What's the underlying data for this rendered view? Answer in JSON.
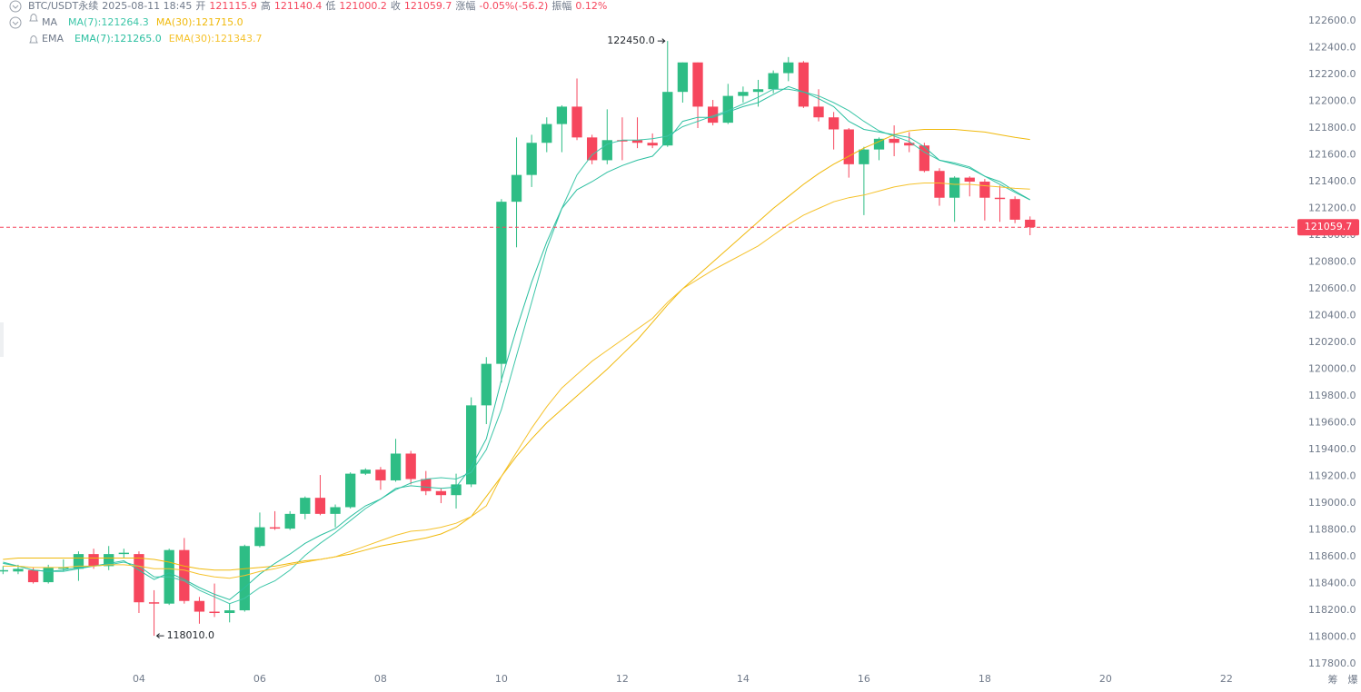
{
  "chart_data": {
    "type": "candlestick",
    "header": {
      "symbol": "BTC/USDT永续",
      "time": "2025-08-11 18:45",
      "labels": [
        "开",
        "高",
        "低",
        "收",
        "涨幅",
        "振幅"
      ],
      "change": "-0.05%(-56.2)",
      "amplitude": "0.12%"
    },
    "indicator_groups": [
      "MA",
      "EMA"
    ],
    "up_color": "#2ebd85",
    "down_color": "#f6465d",
    "x": [
      1.75,
      2,
      2.25,
      2.5,
      2.75,
      3,
      3.25,
      3.5,
      3.75,
      4,
      4.25,
      4.5,
      4.75,
      5,
      5.25,
      5.5,
      5.75,
      6,
      6.25,
      6.5,
      6.75,
      7,
      7.25,
      7.5,
      7.75,
      8,
      8.25,
      8.5,
      8.75,
      9,
      9.25,
      9.5,
      9.75,
      10,
      10.25,
      10.5,
      10.75,
      11,
      11.25,
      11.5,
      11.75,
      12,
      12.25,
      12.5,
      12.75,
      13,
      13.25,
      13.5,
      13.75,
      14,
      14.25,
      14.5,
      14.75,
      15,
      15.25,
      15.5,
      15.75,
      16,
      16.25,
      16.5,
      16.75,
      17,
      17.25,
      17.5,
      17.75,
      18,
      18.25,
      18.5,
      18.75
    ],
    "open": [
      118490,
      118490,
      118500,
      118410,
      118510,
      118510,
      118620,
      118530,
      118620,
      118620,
      118260,
      118250,
      118650,
      118270,
      118190,
      118180,
      118200,
      118680,
      118820,
      118810,
      118920,
      119040,
      118920,
      118970,
      119220,
      119250,
      119170,
      119370,
      119180,
      119090,
      119060,
      119140,
      119730,
      120040,
      121250,
      121450,
      121690,
      121830,
      121960,
      121730,
      121560,
      121710,
      121710,
      121690,
      121670,
      122070,
      122290,
      121960,
      121840,
      122040,
      122070,
      122090,
      122210,
      122290,
      121960,
      121880,
      121790,
      121530,
      121640,
      121720,
      121690,
      121670,
      121480,
      121280,
      121430,
      121400,
      121280,
      121270,
      121115.9
    ],
    "high": [
      118530,
      118540,
      118520,
      118540,
      118580,
      118640,
      118660,
      118680,
      118660,
      118640,
      118350,
      118660,
      118740,
      118300,
      118400,
      118250,
      118690,
      118930,
      118940,
      118940,
      119050,
      119210,
      118990,
      119230,
      119260,
      119270,
      119480,
      119390,
      119240,
      119110,
      119220,
      119790,
      120090,
      121270,
      121730,
      121750,
      121880,
      121970,
      122170,
      121750,
      121940,
      121880,
      121880,
      121760,
      122450,
      122290,
      122290,
      122010,
      122130,
      122110,
      122160,
      122230,
      122330,
      122300,
      122090,
      121920,
      121800,
      121660,
      121730,
      121820,
      121770,
      121690,
      121500,
      121440,
      121440,
      121420,
      121370,
      121290,
      121140.4
    ],
    "low": [
      118470,
      118470,
      118400,
      118400,
      118490,
      118420,
      118510,
      118500,
      118590,
      118180,
      118010,
      118240,
      118250,
      118100,
      118150,
      118110,
      118190,
      118670,
      118800,
      118800,
      118880,
      118910,
      118820,
      118960,
      119210,
      119100,
      119160,
      119140,
      119060,
      119000,
      118960,
      119120,
      119590,
      119900,
      120910,
      121360,
      121620,
      121620,
      121710,
      121530,
      121530,
      121560,
      121650,
      121650,
      121660,
      121990,
      121800,
      121820,
      121830,
      121990,
      121960,
      122060,
      122150,
      121950,
      121850,
      121640,
      121430,
      121150,
      121560,
      121590,
      121620,
      121470,
      121220,
      121100,
      121290,
      121110,
      121100,
      121090,
      121000.2
    ],
    "close": [
      118500,
      118510,
      118410,
      118520,
      118520,
      118620,
      118530,
      118620,
      118630,
      118260,
      118250,
      118650,
      118270,
      118190,
      118180,
      118200,
      118680,
      118820,
      118810,
      118920,
      119040,
      118920,
      118970,
      119220,
      119250,
      119170,
      119370,
      119180,
      119090,
      119060,
      119140,
      119730,
      120040,
      121250,
      121450,
      121690,
      121830,
      121960,
      121730,
      121560,
      121710,
      121700,
      121690,
      121670,
      122070,
      122290,
      121960,
      121840,
      122040,
      122070,
      122090,
      122210,
      122290,
      121960,
      121880,
      121790,
      121530,
      121640,
      121720,
      121690,
      121670,
      121480,
      121280,
      121430,
      121400,
      121280,
      121270,
      121116,
      121059.7
    ],
    "series": [
      {
        "name": "MA(7):121264.3",
        "color": "#3cc6a8",
        "values": [
          118560,
          118530,
          118500,
          118490,
          118490,
          118510,
          118530,
          118540,
          118560,
          118530,
          118450,
          118450,
          118420,
          118350,
          118300,
          118250,
          118290,
          118370,
          118420,
          118500,
          118610,
          118700,
          118780,
          118870,
          118960,
          119030,
          119100,
          119150,
          119180,
          119190,
          119180,
          119230,
          119400,
          119700,
          120100,
          120500,
          120900,
          121200,
          121450,
          121600,
          121680,
          121710,
          121710,
          121720,
          121740,
          121810,
          121850,
          121890,
          121930,
          121980,
          122030,
          122090,
          122090,
          122070,
          122040,
          121990,
          121930,
          121850,
          121780,
          121740,
          121700,
          121620,
          121560,
          121540,
          121510,
          121440,
          121380,
          121320,
          121264.3
        ]
      },
      {
        "name": "MA(30):121715.0",
        "color": "#f0b90b",
        "values": [
          118580,
          118590,
          118590,
          118590,
          118590,
          118590,
          118590,
          118590,
          118590,
          118590,
          118580,
          118560,
          118530,
          118510,
          118500,
          118500,
          118510,
          118520,
          118530,
          118550,
          118570,
          118580,
          118600,
          118620,
          118650,
          118680,
          118700,
          118720,
          118740,
          118770,
          118820,
          118900,
          119050,
          119200,
          119350,
          119480,
          119600,
          119700,
          119800,
          119900,
          120000,
          120110,
          120220,
          120350,
          120480,
          120600,
          120700,
          120800,
          120900,
          121000,
          121100,
          121200,
          121290,
          121380,
          121460,
          121530,
          121590,
          121650,
          121700,
          121750,
          121780,
          121790,
          121790,
          121790,
          121780,
          121770,
          121750,
          121730,
          121715.0
        ]
      },
      {
        "name": "EMA(7):121265.0",
        "color": "#2bbfa0",
        "values": [
          118550,
          118530,
          118500,
          118490,
          118500,
          118520,
          118530,
          118550,
          118570,
          118500,
          118430,
          118480,
          118430,
          118370,
          118320,
          118280,
          118370,
          118470,
          118550,
          118620,
          118700,
          118760,
          118810,
          118900,
          118980,
          119030,
          119110,
          119130,
          119120,
          119110,
          119120,
          119270,
          119480,
          119920,
          120300,
          120650,
          120950,
          121200,
          121340,
          121400,
          121470,
          121520,
          121560,
          121590,
          121710,
          121850,
          121880,
          121880,
          121920,
          121960,
          121990,
          122050,
          122110,
          122070,
          122020,
          121960,
          121850,
          121790,
          121770,
          121750,
          121730,
          121660,
          121560,
          121530,
          121500,
          121440,
          121400,
          121330,
          121265.0
        ]
      },
      {
        "name": "EMA(30):121343.7",
        "color": "#f5c22c",
        "values": [
          118530,
          118530,
          118520,
          118520,
          118520,
          118530,
          118530,
          118540,
          118540,
          118530,
          118510,
          118510,
          118500,
          118470,
          118450,
          118440,
          118460,
          118490,
          118510,
          118540,
          118560,
          118580,
          118600,
          118640,
          118680,
          118720,
          118760,
          118790,
          118800,
          118820,
          118850,
          118900,
          118980,
          119200,
          119380,
          119560,
          119720,
          119860,
          119960,
          120060,
          120140,
          120220,
          120300,
          120380,
          120500,
          120600,
          120670,
          120740,
          120800,
          120860,
          120920,
          121000,
          121080,
          121150,
          121200,
          121250,
          121280,
          121300,
          121330,
          121360,
          121380,
          121390,
          121390,
          121380,
          121380,
          121370,
          121360,
          121350,
          121343.7
        ]
      }
    ],
    "annotations": {
      "high": {
        "value": 122450,
        "label": "122450.0"
      },
      "low": {
        "value": 118010,
        "label": "118010.0"
      }
    },
    "xlim": [
      1.7,
      23.13
    ],
    "xticks": [
      {
        "value": 4,
        "label": "04"
      },
      {
        "value": 6,
        "label": "06"
      },
      {
        "value": 8,
        "label": "08"
      },
      10,
      12,
      14,
      16,
      18,
      20,
      22
    ],
    "ylim": [
      117753,
      122756
    ],
    "yticks": [
      {
        "value": 117800,
        "label": "117800.0"
      },
      {
        "value": 118000,
        "label": "118000.0"
      },
      {
        "value": 118200,
        "label": "118200.0"
      },
      {
        "value": 118400,
        "label": "118400.0"
      },
      {
        "value": 118600,
        "label": "118600.0"
      },
      {
        "value": 118800,
        "label": "118800.0"
      },
      {
        "value": 119000,
        "label": "119000.0"
      },
      {
        "value": 119200,
        "label": "119200.0"
      },
      {
        "value": 119400,
        "label": "119400.0"
      },
      {
        "value": 119600,
        "label": "119600.0"
      },
      {
        "value": 119800,
        "label": "119800.0"
      },
      {
        "value": 120000,
        "label": "120000.0"
      },
      {
        "value": 120200,
        "label": "120200.0"
      },
      {
        "value": 120400,
        "label": "120400.0"
      },
      {
        "value": 120600,
        "label": "120600.0"
      },
      {
        "value": 120800,
        "label": "120800.0"
      },
      {
        "value": 121000,
        "label": "121000.0"
      },
      {
        "value": 121200,
        "label": "121200.0"
      },
      {
        "value": 121400,
        "label": "121400.0"
      },
      {
        "value": 121600,
        "label": "121600.0"
      },
      {
        "value": 121800,
        "label": "121800.0"
      },
      {
        "value": 122000,
        "label": "122000.0"
      },
      {
        "value": 122200,
        "label": "122200.0"
      },
      {
        "value": 122400,
        "label": "122400.0"
      },
      {
        "value": 122600,
        "label": "122600.0"
      }
    ],
    "grid": false,
    "footer_icons": [
      "筹",
      "爆"
    ]
  }
}
